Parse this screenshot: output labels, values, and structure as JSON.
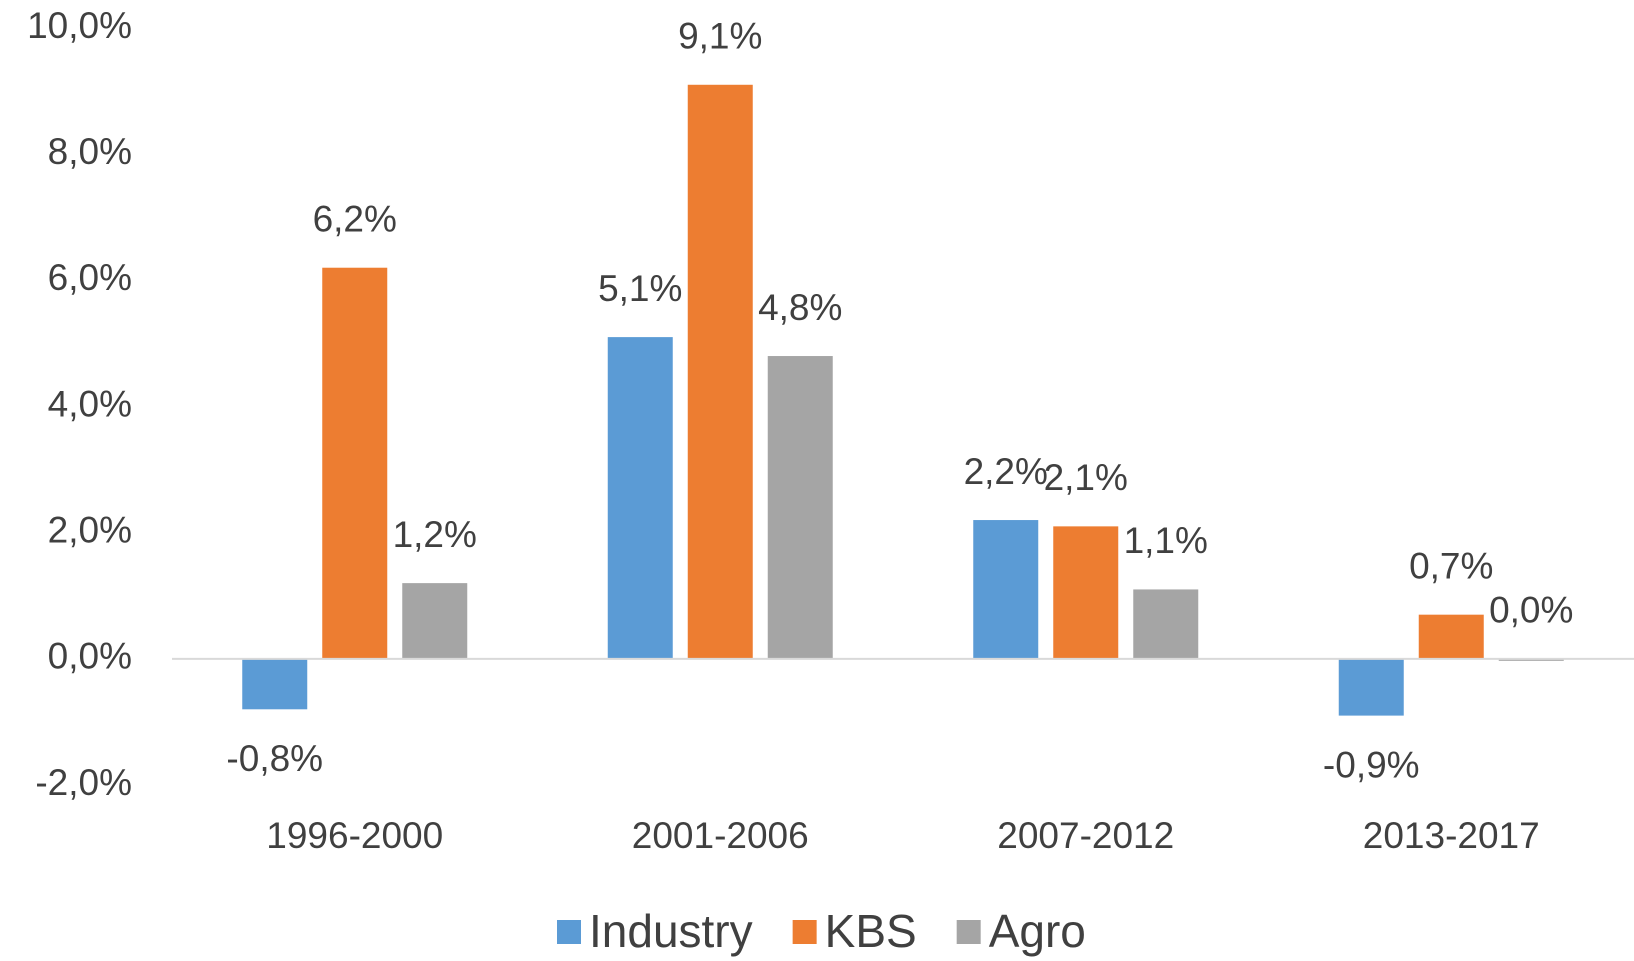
{
  "chart_data": {
    "type": "bar",
    "categories": [
      "1996-2000",
      "2001-2006",
      "2007-2012",
      "2013-2017"
    ],
    "series": [
      {
        "name": "Industry",
        "color": "#5b9bd5",
        "values": [
          -0.8,
          5.1,
          2.2,
          -0.9
        ],
        "value_labels": [
          "-0,8%",
          "5,1%",
          "2,2%",
          "-0,9%"
        ]
      },
      {
        "name": "KBS",
        "color": "#ed7d31",
        "values": [
          6.2,
          9.1,
          2.1,
          0.7
        ],
        "value_labels": [
          "6,2%",
          "9,1%",
          "2,1%",
          "0,7%"
        ]
      },
      {
        "name": "Agro",
        "color": "#a5a5a5",
        "values": [
          1.2,
          4.8,
          1.1,
          0.0
        ],
        "value_labels": [
          "1,2%",
          "4,8%",
          "1,1%",
          "0,0%"
        ]
      }
    ],
    "ylim": [
      -2,
      10
    ],
    "yticks": [
      {
        "value": -2,
        "label": "-2,0%"
      },
      {
        "value": 0,
        "label": "0,0%"
      },
      {
        "value": 2,
        "label": "2,0%"
      },
      {
        "value": 4,
        "label": "4,0%"
      },
      {
        "value": 6,
        "label": "6,0%"
      },
      {
        "value": 8,
        "label": "8,0%"
      },
      {
        "value": 10,
        "label": "10,0%"
      }
    ],
    "grid": false,
    "legend": "bottom"
  }
}
